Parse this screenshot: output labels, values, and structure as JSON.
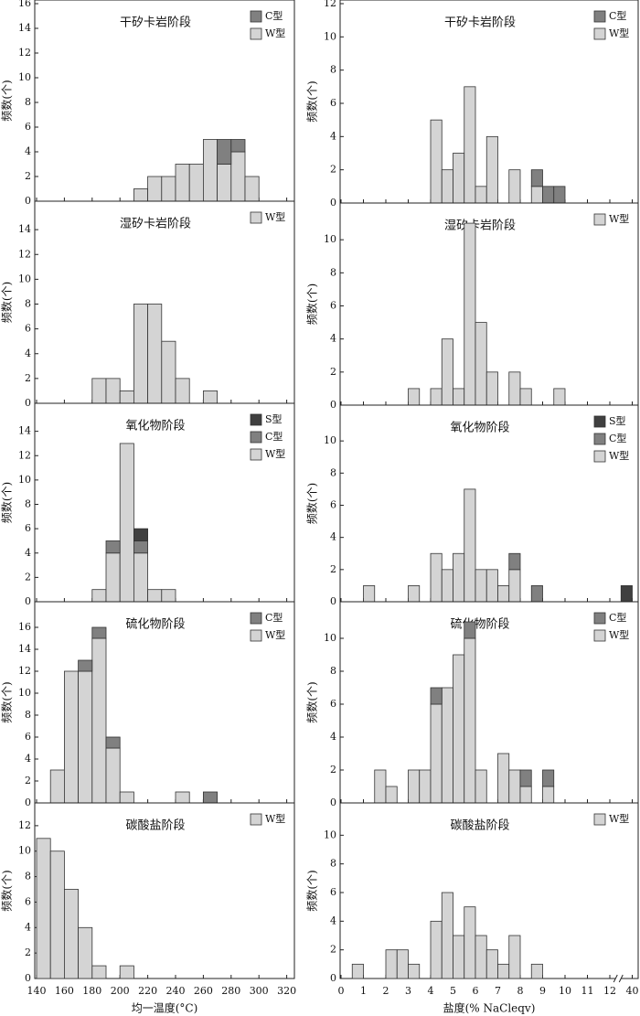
{
  "chart_data": [
    {
      "type": "histogram",
      "title": "干矽卡岩阶段",
      "ylabel": "频数(个)",
      "bins": [
        140,
        150,
        160,
        170,
        180,
        190,
        200,
        210,
        220,
        230,
        240,
        250,
        260,
        270,
        280,
        290,
        300,
        310,
        320
      ],
      "xlim": [
        140,
        320
      ],
      "ylim": [
        0,
        16
      ],
      "yticks": [
        0,
        2,
        4,
        6,
        8,
        10,
        12,
        14,
        16
      ],
      "series": [
        {
          "name": "W型",
          "color": "#d4d4d4",
          "values": [
            0,
            0,
            0,
            0,
            0,
            0,
            0,
            1,
            2,
            2,
            3,
            3,
            5,
            3,
            4,
            2,
            0,
            0
          ]
        },
        {
          "name": "C型",
          "color": "#808080",
          "values": [
            0,
            0,
            0,
            0,
            0,
            0,
            0,
            0,
            0,
            0,
            0,
            0,
            0,
            2,
            1,
            0,
            0,
            0
          ]
        }
      ]
    },
    {
      "type": "histogram",
      "title": "湿矽卡岩阶段",
      "ylabel": "频数(个)",
      "bins": [
        140,
        150,
        160,
        170,
        180,
        190,
        200,
        210,
        220,
        230,
        240,
        250,
        260,
        270,
        280,
        290,
        300,
        310,
        320
      ],
      "xlim": [
        140,
        320
      ],
      "ylim": [
        0,
        16
      ],
      "yticks": [
        0,
        2,
        4,
        6,
        8,
        10,
        12,
        14
      ],
      "series": [
        {
          "name": "W型",
          "color": "#d4d4d4",
          "values": [
            0,
            0,
            0,
            0,
            2,
            2,
            1,
            8,
            8,
            5,
            2,
            0,
            1,
            0,
            0,
            0,
            0,
            0
          ]
        }
      ]
    },
    {
      "type": "histogram",
      "title": "氧化物阶段",
      "ylabel": "频数(个)",
      "bins": [
        140,
        150,
        160,
        170,
        180,
        190,
        200,
        210,
        220,
        230,
        240,
        250,
        260,
        270,
        280,
        290,
        300,
        310,
        320
      ],
      "xlim": [
        140,
        320
      ],
      "ylim": [
        0,
        16
      ],
      "yticks": [
        0,
        2,
        4,
        6,
        8,
        10,
        12,
        14
      ],
      "series": [
        {
          "name": "W型",
          "color": "#d4d4d4",
          "values": [
            0,
            0,
            0,
            0,
            1,
            4,
            13,
            4,
            1,
            1,
            0,
            0,
            0,
            0,
            0,
            0,
            0,
            0
          ]
        },
        {
          "name": "C型",
          "color": "#808080",
          "values": [
            0,
            0,
            0,
            0,
            0,
            1,
            0,
            1,
            0,
            0,
            0,
            0,
            0,
            0,
            0,
            0,
            0,
            0
          ]
        },
        {
          "name": "S型",
          "color": "#404040",
          "values": [
            0,
            0,
            0,
            0,
            0,
            0,
            0,
            1,
            0,
            0,
            0,
            0,
            0,
            0,
            0,
            0,
            0,
            0
          ]
        }
      ]
    },
    {
      "type": "histogram",
      "title": "硫化物阶段",
      "ylabel": "频数(个)",
      "bins": [
        140,
        150,
        160,
        170,
        180,
        190,
        200,
        210,
        220,
        230,
        240,
        250,
        260,
        270,
        280,
        290,
        300,
        310,
        320
      ],
      "xlim": [
        140,
        320
      ],
      "ylim": [
        0,
        18
      ],
      "yticks": [
        0,
        2,
        4,
        6,
        8,
        10,
        12,
        14,
        16
      ],
      "series": [
        {
          "name": "W型",
          "color": "#d4d4d4",
          "values": [
            0,
            3,
            12,
            12,
            15,
            5,
            1,
            0,
            0,
            0,
            1,
            0,
            0,
            0,
            0,
            0,
            0,
            0
          ]
        },
        {
          "name": "C型",
          "color": "#808080",
          "values": [
            0,
            0,
            0,
            1,
            1,
            1,
            0,
            0,
            0,
            0,
            0,
            0,
            1,
            0,
            0,
            0,
            0,
            0
          ]
        }
      ]
    },
    {
      "type": "histogram",
      "title": "碳酸盐阶段",
      "ylabel": "频数(个)",
      "xlabel": "均一温度(°C)",
      "bins": [
        140,
        150,
        160,
        170,
        180,
        190,
        200,
        210,
        220,
        230,
        240,
        250,
        260,
        270,
        280,
        290,
        300,
        310,
        320
      ],
      "xlim": [
        140,
        320
      ],
      "xticks": [
        140,
        160,
        180,
        200,
        220,
        240,
        260,
        280,
        300,
        320
      ],
      "ylim": [
        0,
        13.5
      ],
      "yticks": [
        0,
        2,
        4,
        6,
        8,
        10,
        12
      ],
      "series": [
        {
          "name": "W型",
          "color": "#d4d4d4",
          "values": [
            11,
            10,
            7,
            4,
            1,
            0,
            1,
            0,
            0,
            0,
            0,
            0,
            0,
            0,
            0,
            0,
            0,
            0
          ]
        }
      ]
    },
    {
      "type": "histogram",
      "title": "干矽卡岩阶段",
      "ylabel": "频数(个)",
      "bins": [
        0,
        0.5,
        1,
        1.5,
        2,
        2.5,
        3,
        3.5,
        4,
        4.5,
        5,
        5.5,
        6,
        6.5,
        7,
        7.5,
        8,
        8.5,
        9,
        9.5,
        10,
        39.5,
        40
      ],
      "xlim": [
        0,
        40
      ],
      "xbreak": [
        12.5,
        39.5
      ],
      "ylim": [
        0,
        12
      ],
      "yticks": [
        0,
        2,
        4,
        6,
        8,
        10,
        12
      ],
      "series": [
        {
          "name": "W型",
          "color": "#d4d4d4",
          "values": [
            0,
            0,
            0,
            0,
            0,
            0,
            0,
            0,
            5,
            2,
            3,
            7,
            1,
            4,
            0,
            2,
            0,
            1,
            0,
            0,
            0,
            0
          ]
        },
        {
          "name": "C型",
          "color": "#808080",
          "values": [
            0,
            0,
            0,
            0,
            0,
            0,
            0,
            0,
            0,
            0,
            0,
            0,
            0,
            0,
            0,
            0,
            0,
            1,
            1,
            1,
            0,
            0
          ]
        }
      ]
    },
    {
      "type": "histogram",
      "title": "湿矽卡岩阶段",
      "ylabel": "频数(个)",
      "bins": [
        0,
        0.5,
        1,
        1.5,
        2,
        2.5,
        3,
        3.5,
        4,
        4.5,
        5,
        5.5,
        6,
        6.5,
        7,
        7.5,
        8,
        8.5,
        9,
        9.5,
        10,
        39.5,
        40
      ],
      "xlim": [
        0,
        40
      ],
      "xbreak": [
        12.5,
        39.5
      ],
      "ylim": [
        0,
        12
      ],
      "yticks": [
        0,
        2,
        4,
        6,
        8,
        10
      ],
      "series": [
        {
          "name": "W型",
          "color": "#d4d4d4",
          "values": [
            0,
            0,
            0,
            0,
            0,
            0,
            1,
            0,
            1,
            4,
            1,
            11,
            5,
            2,
            0,
            2,
            1,
            0,
            0,
            1,
            0,
            0
          ]
        }
      ]
    },
    {
      "type": "histogram",
      "title": "氧化物阶段",
      "ylabel": "频数(个)",
      "bins": [
        0,
        0.5,
        1,
        1.5,
        2,
        2.5,
        3,
        3.5,
        4,
        4.5,
        5,
        5.5,
        6,
        6.5,
        7,
        7.5,
        8,
        8.5,
        9,
        9.5,
        10,
        39.5,
        40
      ],
      "xlim": [
        0,
        40
      ],
      "xbreak": [
        12.5,
        39.5
      ],
      "ylim": [
        0,
        12
      ],
      "yticks": [
        0,
        2,
        4,
        6,
        8,
        10
      ],
      "series": [
        {
          "name": "W型",
          "color": "#d4d4d4",
          "values": [
            0,
            0,
            1,
            0,
            0,
            0,
            1,
            0,
            3,
            2,
            3,
            7,
            2,
            2,
            1,
            2,
            0,
            0,
            0,
            0,
            0,
            0
          ]
        },
        {
          "name": "C型",
          "color": "#808080",
          "values": [
            0,
            0,
            0,
            0,
            0,
            0,
            0,
            0,
            0,
            0,
            0,
            0,
            0,
            0,
            0,
            1,
            0,
            1,
            0,
            0,
            0,
            0
          ]
        },
        {
          "name": "S型",
          "color": "#404040",
          "values": [
            0,
            0,
            0,
            0,
            0,
            0,
            0,
            0,
            0,
            0,
            0,
            0,
            0,
            0,
            0,
            0,
            0,
            0,
            0,
            0,
            0,
            1
          ]
        }
      ]
    },
    {
      "type": "histogram",
      "title": "硫化物阶段",
      "ylabel": "频数(个)",
      "bins": [
        0,
        0.5,
        1,
        1.5,
        2,
        2.5,
        3,
        3.5,
        4,
        4.5,
        5,
        5.5,
        6,
        6.5,
        7,
        7.5,
        8,
        8.5,
        9,
        9.5,
        10,
        39.5,
        40
      ],
      "xlim": [
        0,
        40
      ],
      "xbreak": [
        12.5,
        39.5
      ],
      "ylim": [
        0,
        12
      ],
      "yticks": [
        0,
        2,
        4,
        6,
        8,
        10
      ],
      "series": [
        {
          "name": "W型",
          "color": "#d4d4d4",
          "values": [
            0,
            0,
            0,
            2,
            1,
            0,
            2,
            2,
            6,
            7,
            9,
            10,
            2,
            0,
            3,
            2,
            1,
            0,
            1,
            0,
            0,
            0
          ]
        },
        {
          "name": "C型",
          "color": "#808080",
          "values": [
            0,
            0,
            0,
            0,
            0,
            0,
            0,
            0,
            1,
            0,
            0,
            1,
            0,
            0,
            0,
            0,
            1,
            0,
            1,
            0,
            0,
            0
          ]
        }
      ]
    },
    {
      "type": "histogram",
      "title": "碳酸盐阶段",
      "ylabel": "频数(个)",
      "xlabel": "盐度(% NaCleqv)",
      "bins": [
        0,
        0.5,
        1,
        1.5,
        2,
        2.5,
        3,
        3.5,
        4,
        4.5,
        5,
        5.5,
        6,
        6.5,
        7,
        7.5,
        8,
        8.5,
        9,
        9.5,
        10,
        39.5,
        40
      ],
      "xlim": [
        0,
        40
      ],
      "xbreak": [
        12.5,
        39.5
      ],
      "xticks": [
        0,
        1,
        2,
        3,
        4,
        5,
        6,
        7,
        8,
        9,
        10,
        11,
        12,
        40
      ],
      "ylim": [
        0,
        12
      ],
      "yticks": [
        0,
        2,
        4,
        6,
        8,
        10
      ],
      "series": [
        {
          "name": "W型",
          "color": "#d4d4d4",
          "values": [
            0,
            1,
            0,
            0,
            2,
            2,
            1,
            0,
            4,
            6,
            3,
            5,
            3,
            2,
            1,
            3,
            0,
            1,
            0,
            0,
            0,
            0
          ]
        }
      ]
    }
  ]
}
